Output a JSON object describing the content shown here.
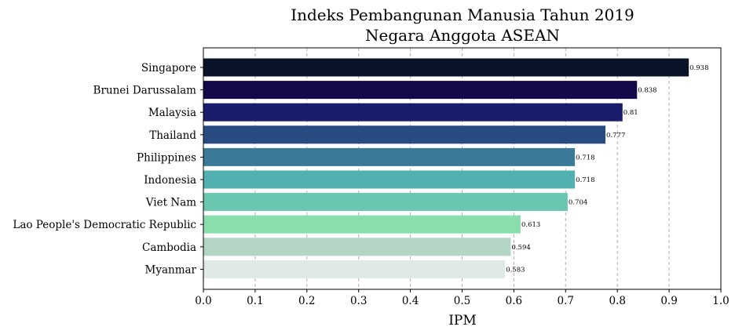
{
  "chart_data": {
    "type": "bar",
    "orientation": "horizontal",
    "title_lines": [
      "Indeks Pembangunan Manusia Tahun 2019",
      "Negara Anggota ASEAN"
    ],
    "xlabel": "IPM",
    "ylabel": "",
    "xlim": [
      0.0,
      1.0
    ],
    "x_ticks": [
      "0.0",
      "0.1",
      "0.2",
      "0.3",
      "0.4",
      "0.5",
      "0.6",
      "0.7",
      "0.8",
      "0.9",
      "1.0"
    ],
    "grid": "vertical dashed",
    "categories": [
      "Singapore",
      "Brunei Darussalam",
      "Malaysia",
      "Thailand",
      "Philippines",
      "Indonesia",
      "Viet Nam",
      "Lao People's Democratic Republic",
      "Cambodia",
      "Myanmar"
    ],
    "values": [
      0.938,
      0.838,
      0.81,
      0.777,
      0.718,
      0.718,
      0.704,
      0.613,
      0.594,
      0.583
    ],
    "value_labels": [
      "0.938",
      "0.838",
      "0.81",
      "0.777",
      "0.718",
      "0.718",
      "0.704",
      "0.613",
      "0.594",
      "0.583"
    ],
    "colors": [
      "#0b1329",
      "#140a4a",
      "#1a1d6b",
      "#284b82",
      "#3a7a98",
      "#52b0b0",
      "#6ac6b0",
      "#8adeae",
      "#b3d6c4",
      "#e0eae4"
    ]
  }
}
